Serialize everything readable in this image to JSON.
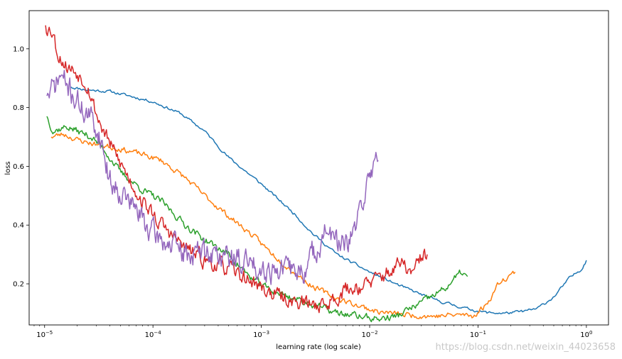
{
  "chart_data": {
    "type": "line",
    "title": "",
    "xlabel": "learning rate (log scale)",
    "ylabel": "loss",
    "xscale": "log",
    "xlim": [
      7.2e-06,
      1.6
    ],
    "ylim": [
      0.06,
      1.13
    ],
    "grid": false,
    "xticks": [
      {
        "value": 1e-05,
        "base": "10",
        "exp": "−5"
      },
      {
        "value": 0.0001,
        "base": "10",
        "exp": "−4"
      },
      {
        "value": 0.001,
        "base": "10",
        "exp": "−3"
      },
      {
        "value": 0.01,
        "base": "10",
        "exp": "−2"
      },
      {
        "value": 0.1,
        "base": "10",
        "exp": "−1"
      },
      {
        "value": 1,
        "base": "10",
        "exp": "0"
      }
    ],
    "yticks": [
      {
        "value": 0.2,
        "label": "0.2"
      },
      {
        "value": 0.4,
        "label": "0.4"
      },
      {
        "value": 0.6,
        "label": "0.6"
      },
      {
        "value": 0.8,
        "label": "0.8"
      },
      {
        "value": 1.0,
        "label": "1.0"
      }
    ],
    "series": [
      {
        "name": "blue",
        "color": "#1f77b4",
        "noise": 0.004,
        "seed": 11,
        "points": [
          [
            1.75e-05,
            0.87
          ],
          [
            2.5e-05,
            0.86
          ],
          [
            4e-05,
            0.855
          ],
          [
            6e-05,
            0.84
          ],
          [
            0.0001,
            0.82
          ],
          [
            0.00018,
            0.78
          ],
          [
            0.0003,
            0.72
          ],
          [
            0.0005,
            0.63
          ],
          [
            0.001,
            0.54
          ],
          [
            0.002,
            0.44
          ],
          [
            0.003,
            0.37
          ],
          [
            0.005,
            0.3
          ],
          [
            0.01,
            0.24
          ],
          [
            0.02,
            0.19
          ],
          [
            0.04,
            0.145
          ],
          [
            0.08,
            0.115
          ],
          [
            0.12,
            0.102
          ],
          [
            0.18,
            0.1
          ],
          [
            0.25,
            0.105
          ],
          [
            0.35,
            0.115
          ],
          [
            0.5,
            0.155
          ],
          [
            0.7,
            0.22
          ],
          [
            0.9,
            0.25
          ],
          [
            1.0,
            0.28
          ]
        ]
      },
      {
        "name": "orange",
        "color": "#ff7f0e",
        "noise": 0.008,
        "seed": 23,
        "points": [
          [
            1.15e-05,
            0.7
          ],
          [
            1.5e-05,
            0.71
          ],
          [
            2e-05,
            0.69
          ],
          [
            3e-05,
            0.675
          ],
          [
            5e-05,
            0.66
          ],
          [
            8e-05,
            0.64
          ],
          [
            0.00012,
            0.62
          ],
          [
            0.0002,
            0.56
          ],
          [
            0.0003,
            0.5
          ],
          [
            0.0005,
            0.43
          ],
          [
            0.0008,
            0.37
          ],
          [
            0.0012,
            0.31
          ],
          [
            0.002,
            0.24
          ],
          [
            0.003,
            0.19
          ],
          [
            0.005,
            0.15
          ],
          [
            0.008,
            0.125
          ],
          [
            0.012,
            0.105
          ],
          [
            0.02,
            0.095
          ],
          [
            0.04,
            0.09
          ],
          [
            0.07,
            0.095
          ],
          [
            0.09,
            0.09
          ],
          [
            0.12,
            0.13
          ],
          [
            0.16,
            0.21
          ],
          [
            0.22,
            0.24
          ]
        ]
      },
      {
        "name": "green",
        "color": "#2ca02c",
        "noise": 0.01,
        "seed": 37,
        "points": [
          [
            1.05e-05,
            0.77
          ],
          [
            1.2e-05,
            0.72
          ],
          [
            1.6e-05,
            0.735
          ],
          [
            2e-05,
            0.72
          ],
          [
            2.7e-05,
            0.7
          ],
          [
            3.5e-05,
            0.66
          ],
          [
            5e-05,
            0.58
          ],
          [
            8e-05,
            0.52
          ],
          [
            0.00012,
            0.48
          ],
          [
            0.0002,
            0.4
          ],
          [
            0.0003,
            0.35
          ],
          [
            0.0005,
            0.3
          ],
          [
            0.0008,
            0.22
          ],
          [
            0.0012,
            0.18
          ],
          [
            0.002,
            0.15
          ],
          [
            0.003,
            0.13
          ],
          [
            0.005,
            0.1
          ],
          [
            0.008,
            0.09
          ],
          [
            0.012,
            0.08
          ],
          [
            0.018,
            0.09
          ],
          [
            0.025,
            0.12
          ],
          [
            0.035,
            0.15
          ],
          [
            0.05,
            0.185
          ],
          [
            0.07,
            0.24
          ],
          [
            0.08,
            0.225
          ]
        ]
      },
      {
        "name": "red",
        "color": "#d62728",
        "noise": 0.022,
        "seed": 53,
        "points": [
          [
            1.02e-05,
            1.08
          ],
          [
            1.2e-05,
            1.06
          ],
          [
            1.3e-05,
            0.99
          ],
          [
            1.6e-05,
            0.94
          ],
          [
            2e-05,
            0.92
          ],
          [
            2.5e-05,
            0.88
          ],
          [
            3e-05,
            0.78
          ],
          [
            3.5e-05,
            0.72
          ],
          [
            4.5e-05,
            0.64
          ],
          [
            6e-05,
            0.56
          ],
          [
            8e-05,
            0.48
          ],
          [
            0.00012,
            0.4
          ],
          [
            0.0002,
            0.32
          ],
          [
            0.0003,
            0.28
          ],
          [
            0.0005,
            0.25
          ],
          [
            0.0008,
            0.21
          ],
          [
            0.0012,
            0.17
          ],
          [
            0.002,
            0.14
          ],
          [
            0.003,
            0.13
          ],
          [
            0.004,
            0.13
          ],
          [
            0.006,
            0.18
          ],
          [
            0.01,
            0.2
          ],
          [
            0.015,
            0.24
          ],
          [
            0.02,
            0.27
          ],
          [
            0.025,
            0.23
          ],
          [
            0.03,
            0.29
          ],
          [
            0.034,
            0.3
          ]
        ]
      },
      {
        "name": "purple",
        "color": "#9467bd",
        "noise": 0.035,
        "seed": 71,
        "points": [
          [
            1.05e-05,
            0.84
          ],
          [
            1.2e-05,
            0.86
          ],
          [
            1.4e-05,
            0.91
          ],
          [
            1.7e-05,
            0.86
          ],
          [
            2.2e-05,
            0.8
          ],
          [
            2.8e-05,
            0.75
          ],
          [
            3.3e-05,
            0.7
          ],
          [
            4e-05,
            0.55
          ],
          [
            5e-05,
            0.52
          ],
          [
            7e-05,
            0.45
          ],
          [
            0.0001,
            0.37
          ],
          [
            0.00015,
            0.33
          ],
          [
            0.0002,
            0.3
          ],
          [
            0.0003,
            0.31
          ],
          [
            0.0005,
            0.29
          ],
          [
            0.0008,
            0.27
          ],
          [
            0.0012,
            0.25
          ],
          [
            0.0018,
            0.25
          ],
          [
            0.0025,
            0.24
          ],
          [
            0.003,
            0.3
          ],
          [
            0.004,
            0.38
          ],
          [
            0.005,
            0.34
          ],
          [
            0.006,
            0.32
          ],
          [
            0.007,
            0.36
          ],
          [
            0.008,
            0.43
          ],
          [
            0.009,
            0.52
          ],
          [
            0.01,
            0.55
          ],
          [
            0.011,
            0.62
          ],
          [
            0.0115,
            0.68
          ],
          [
            0.012,
            0.62
          ]
        ]
      }
    ],
    "watermark": "https://blog.csdn.net/weixin_44023658"
  }
}
